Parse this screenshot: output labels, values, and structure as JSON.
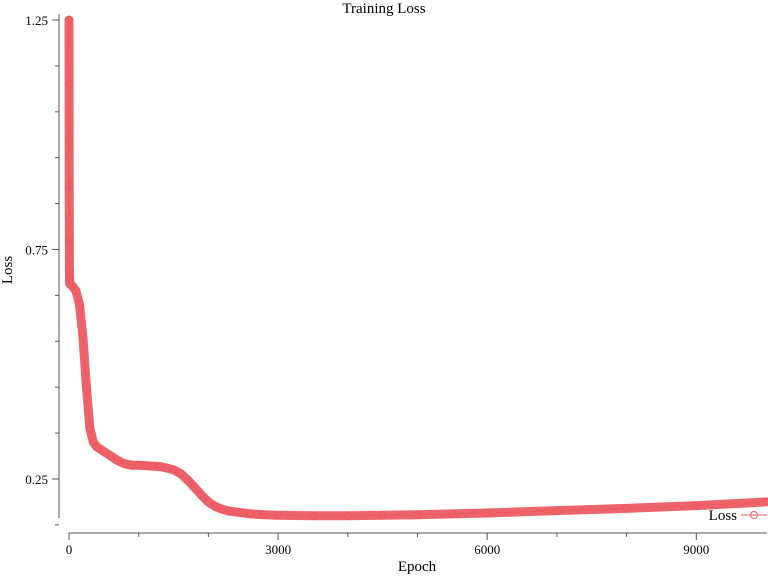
{
  "chart_data": {
    "type": "line",
    "title": "Training Loss",
    "xlabel": "Epoch",
    "ylabel": "Loss",
    "xlim": [
      0,
      10000
    ],
    "ylim": [
      0.165,
      1.25
    ],
    "x_ticks": [
      0,
      3000,
      6000,
      9000
    ],
    "x_tick_labels": [
      "0",
      "3000",
      "6000",
      "9000"
    ],
    "x_minor_ticks": [
      1000,
      2000,
      4000,
      5000,
      7000,
      8000
    ],
    "y_ticks": [
      0.25,
      0.75,
      1.25
    ],
    "y_tick_labels": [
      "0.25",
      "0.75",
      "1.25"
    ],
    "y_minor_ticks": [
      0.15,
      0.35,
      0.45,
      0.55,
      0.65,
      0.85,
      0.95,
      1.05,
      1.15
    ],
    "grid": false,
    "legend": "bottom-right",
    "marker": "open-circle",
    "color": "#ec5860",
    "series": [
      {
        "name": "Loss",
        "x": [
          0,
          1,
          2,
          3,
          4,
          5,
          6,
          7,
          8,
          9,
          10,
          50,
          100,
          150,
          200,
          250,
          300,
          350,
          400,
          500,
          600,
          700,
          800,
          900,
          1000,
          1100,
          1200,
          1300,
          1400,
          1500,
          1600,
          1700,
          1800,
          1900,
          2000,
          2100,
          2200,
          2300,
          2400,
          2500,
          2600,
          2700,
          2800,
          3000,
          3500,
          4000,
          4500,
          5000,
          5500,
          6000,
          7000,
          8000,
          9000,
          10000
        ],
        "y": [
          1.25,
          1.11,
          0.99,
          0.89,
          0.82,
          0.77,
          0.73,
          0.705,
          0.69,
          0.682,
          0.675,
          0.67,
          0.66,
          0.63,
          0.56,
          0.45,
          0.36,
          0.33,
          0.32,
          0.31,
          0.3,
          0.29,
          0.283,
          0.28,
          0.28,
          0.279,
          0.278,
          0.277,
          0.274,
          0.27,
          0.262,
          0.248,
          0.232,
          0.215,
          0.2,
          0.19,
          0.184,
          0.18,
          0.178,
          0.176,
          0.174,
          0.173,
          0.172,
          0.171,
          0.17,
          0.17,
          0.171,
          0.172,
          0.174,
          0.176,
          0.181,
          0.186,
          0.192,
          0.2
        ]
      }
    ]
  }
}
